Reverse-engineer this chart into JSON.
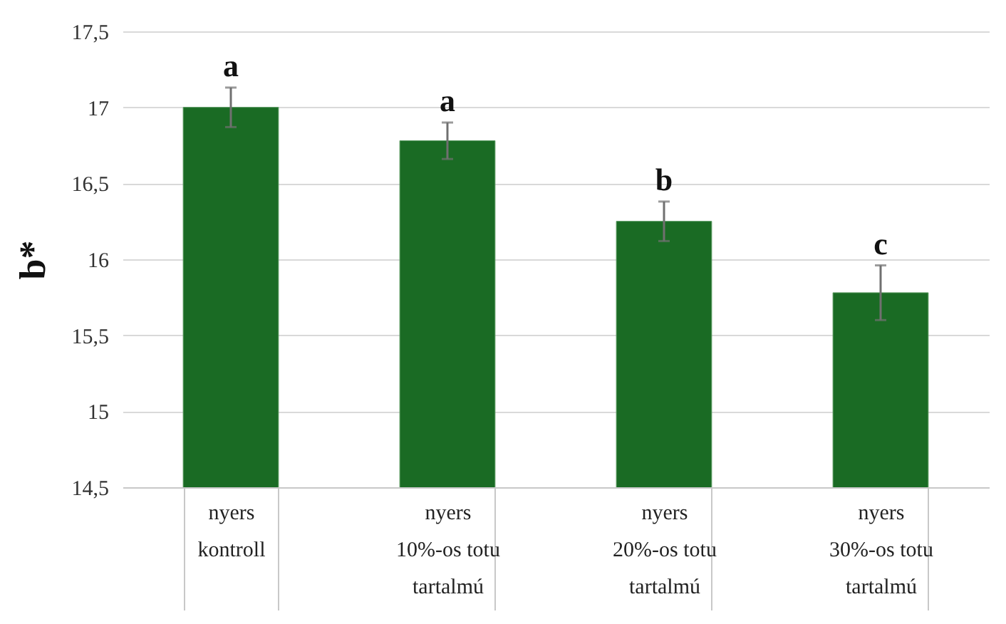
{
  "chart_data": {
    "type": "bar",
    "ylabel": "b*",
    "categories": [
      "nyers\nkontroll",
      "nyers\n10%-os totu\ntartalmú",
      "nyers\n20%-os totu\ntartalmú",
      "nyers\n30%-os totu\ntartalmú"
    ],
    "values": [
      17.0,
      16.78,
      16.25,
      15.78
    ],
    "errors": [
      0.13,
      0.12,
      0.13,
      0.18
    ],
    "color": "#1a6b24",
    "ylim": [
      14.5,
      17.5
    ],
    "yticks": [
      {
        "value": 14.5,
        "label": "14,5"
      },
      15,
      {
        "value": 15.5,
        "label": "15,5"
      },
      16,
      {
        "value": 16.5,
        "label": "16,5"
      },
      17,
      {
        "value": 17.5,
        "label": "17,5"
      }
    ],
    "grid": true,
    "annotations": [
      "a",
      "a",
      "b",
      "c"
    ]
  }
}
